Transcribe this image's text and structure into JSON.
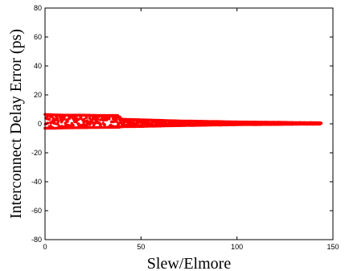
{
  "chart_data": {
    "type": "scatter",
    "xlabel": "Slew/Elmore",
    "ylabel": "Interconnect Delay Error (ps)",
    "xlim": [
      0,
      150
    ],
    "ylim": [
      -80,
      80
    ],
    "xticks": [
      0,
      50,
      100,
      150
    ],
    "yticks": [
      -80,
      -60,
      -40,
      -20,
      0,
      20,
      40,
      60,
      80
    ],
    "xtick_labels": [
      "0",
      "50",
      "100",
      "150"
    ],
    "ytick_labels": [
      "-80",
      "-60",
      "-40",
      "-20",
      "0",
      "20",
      "40",
      "60",
      "80"
    ],
    "grid": false,
    "marker_color": "#ff0000",
    "series": [
      {
        "envelope": {
          "x": [
            0,
            5,
            10,
            20,
            30,
            38,
            40,
            50,
            60,
            70,
            80,
            90,
            100,
            110,
            120,
            130,
            140,
            144
          ],
          "y_max": [
            6.5,
            6.2,
            6.0,
            6.0,
            5.8,
            5.8,
            3.2,
            2.8,
            2.4,
            2.0,
            1.8,
            1.6,
            1.3,
            1.2,
            1.1,
            0.9,
            0.8,
            0.7
          ],
          "y_min": [
            -3.0,
            -3.0,
            -2.8,
            -2.6,
            -2.5,
            -2.4,
            -2.0,
            -1.8,
            -1.5,
            -1.2,
            -1.0,
            -0.8,
            -0.6,
            -0.5,
            -0.4,
            -0.3,
            -0.2,
            -0.2
          ]
        }
      }
    ]
  }
}
